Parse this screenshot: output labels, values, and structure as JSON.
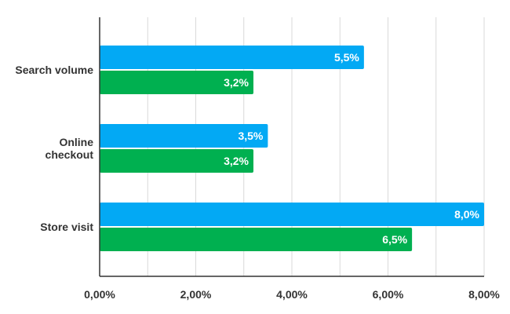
{
  "chart_data": {
    "type": "bar",
    "orientation": "horizontal",
    "categories": [
      "Search volume",
      "Online checkout",
      "Store visit"
    ],
    "category_lines": [
      [
        "Search volume"
      ],
      [
        "Online",
        "checkout"
      ],
      [
        "Store visit"
      ]
    ],
    "series": [
      {
        "color": "#03a9f4",
        "values": [
          5.5,
          3.5,
          8.0
        ],
        "labels": [
          "5,5%",
          "3,5%",
          "8,0%"
        ]
      },
      {
        "color": "#00b050",
        "values": [
          3.2,
          3.2,
          6.5
        ],
        "labels": [
          "3,2%",
          "3,2%",
          "6,5%"
        ]
      }
    ],
    "xlim": [
      0,
      8
    ],
    "xticks": [
      0,
      2,
      4,
      6,
      8
    ],
    "xtick_labels": [
      "0,00%",
      "2,00%",
      "4,00%",
      "6,00%",
      "8,00%"
    ],
    "minor_grid": true,
    "grid": true,
    "title": "",
    "xlabel": "",
    "ylabel": ""
  }
}
